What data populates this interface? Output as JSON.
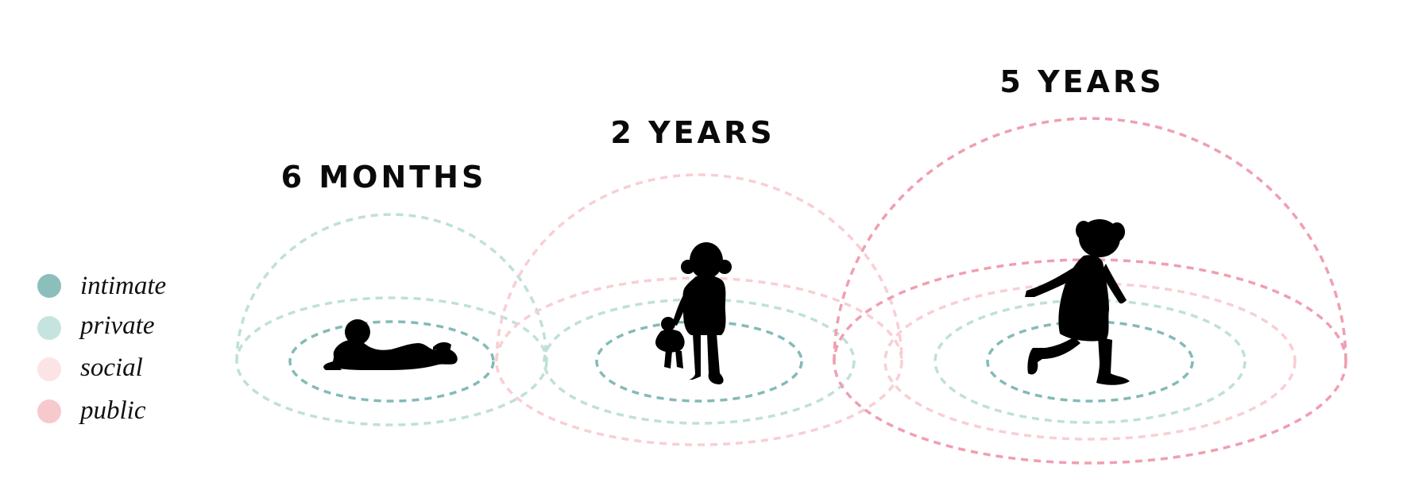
{
  "stages": [
    {
      "label": "6 MONTHS"
    },
    {
      "label": "2 YEARS"
    },
    {
      "label": "5 YEARS"
    }
  ],
  "legend": [
    {
      "label": "intimate",
      "color": "#8cbfbc"
    },
    {
      "label": "private",
      "color": "#c5e4df"
    },
    {
      "label": "social",
      "color": "#fce4e6"
    },
    {
      "label": "public",
      "color": "#f7c9cd"
    }
  ],
  "stroke_colors": {
    "intimate": "#84bab7",
    "private": "#bfe0da",
    "social": "#f8cfd3",
    "public": "#ef9fb0"
  },
  "icons": {
    "baby": "crawling-baby-silhouette",
    "toddler": "toddler-with-doll-silhouette",
    "child": "running-child-silhouette"
  }
}
